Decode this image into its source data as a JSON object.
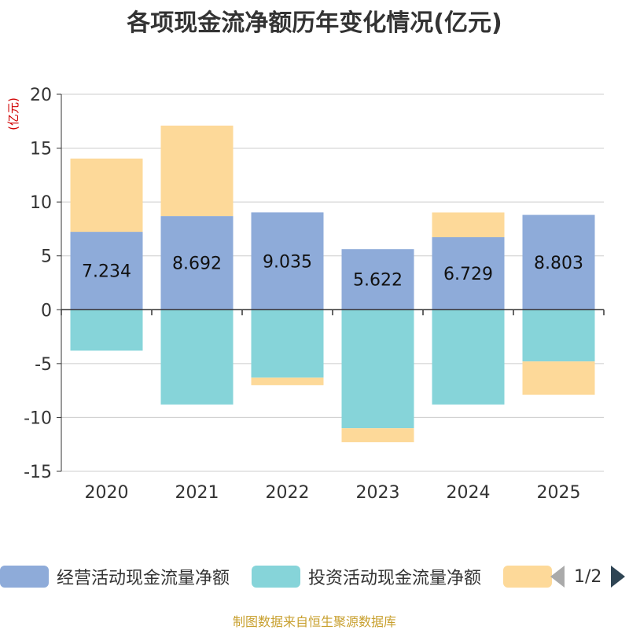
{
  "title": "各项现金流净额历年变化情况(亿元)",
  "source_note": "制图数据来自恒生聚源数据库",
  "legend": {
    "items": [
      {
        "label": "经营活动现金流量净额",
        "color": "#8eabd9"
      },
      {
        "label": "投资活动现金流量净额",
        "color": "#86d4d9"
      },
      {
        "label": "",
        "color": "#fdd999"
      }
    ],
    "page": "1/2"
  },
  "chart_data": {
    "type": "bar",
    "stacked": true,
    "title": "各项现金流净额历年变化情况(亿元)",
    "ylabel": "(亿元)",
    "xlabel": "",
    "ylim": [
      -15,
      20
    ],
    "yticks": [
      20,
      15,
      10,
      5,
      0,
      -5,
      -10,
      -15
    ],
    "categories": [
      "2020",
      "2021",
      "2022",
      "2023",
      "2024",
      "2025"
    ],
    "series": [
      {
        "name": "经营活动现金流量净额",
        "color": "#8eabd9",
        "values": [
          7.234,
          8.692,
          9.035,
          5.622,
          6.729,
          8.803
        ],
        "labels": [
          "7.234",
          "8.692",
          "9.035",
          "5.622",
          "6.729",
          "8.803"
        ]
      },
      {
        "name": "投资活动现金流量净额",
        "color": "#86d4d9",
        "values": [
          -3.8,
          -8.8,
          -6.3,
          -11.0,
          -8.8,
          -4.8
        ]
      },
      {
        "name": "",
        "color": "#fdd999",
        "values": [
          6.8,
          8.4,
          -0.7,
          -1.3,
          2.3,
          -3.1
        ]
      }
    ]
  }
}
